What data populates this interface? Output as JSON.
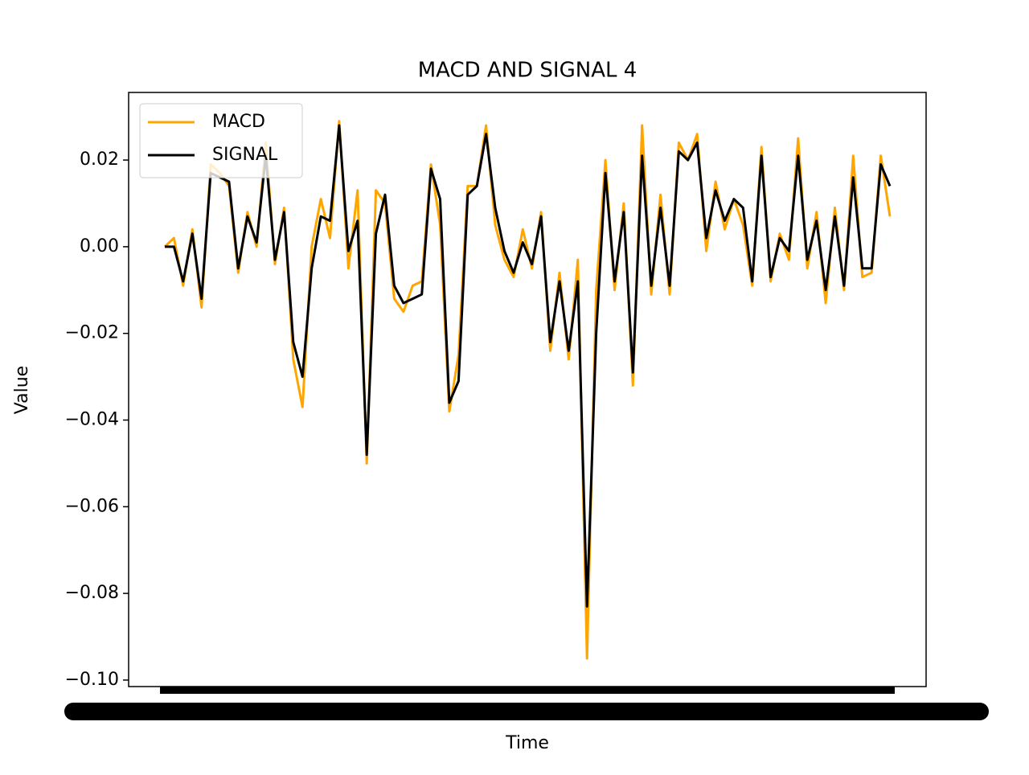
{
  "chart_data": {
    "type": "line",
    "title": "MACD AND SIGNAL 4",
    "x_label": "Time",
    "y_label": "Value",
    "categories": [
      null,
      null,
      null,
      null,
      null,
      null,
      null,
      null,
      null,
      null,
      null,
      null,
      null,
      null,
      null,
      null,
      null,
      null,
      null,
      null,
      null,
      null,
      null,
      null,
      null,
      null,
      null,
      null,
      null,
      null,
      null,
      null,
      null,
      null,
      null,
      null,
      null,
      null,
      null,
      null,
      null,
      null,
      null,
      null,
      null,
      null,
      null,
      null,
      null,
      null,
      null,
      null,
      null,
      null,
      null,
      null,
      null,
      null,
      null,
      null,
      null,
      null,
      null,
      null,
      null,
      null,
      null,
      null,
      null,
      null,
      null,
      null,
      null,
      null,
      null,
      null,
      null,
      null,
      null,
      null
    ],
    "series": [
      {
        "name": "MACD",
        "color": "#ffa500",
        "values": [
          0,
          0.002,
          -0.009,
          0.004,
          -0.014,
          0.019,
          0.017,
          0.014,
          -0.006,
          0.008,
          0.0,
          0.024,
          -0.004,
          0.009,
          -0.026,
          -0.037,
          0.0,
          0.011,
          0.002,
          0.029,
          -0.005,
          0.013,
          -0.05,
          0.013,
          0.01,
          -0.012,
          -0.015,
          -0.009,
          -0.008,
          0.019,
          0.005,
          -0.038,
          -0.025,
          0.014,
          0.014,
          0.028,
          0.005,
          -0.003,
          -0.007,
          0.004,
          -0.005,
          0.008,
          -0.024,
          -0.006,
          -0.026,
          -0.003,
          -0.095,
          -0.01,
          0.02,
          -0.01,
          0.01,
          -0.032,
          0.028,
          -0.011,
          0.012,
          -0.011,
          0.024,
          0.02,
          0.026,
          -0.001,
          0.015,
          0.004,
          0.011,
          0.005,
          -0.009,
          0.023,
          -0.008,
          0.003,
          -0.003,
          0.025,
          -0.005,
          0.008,
          -0.013,
          0.009,
          -0.01,
          0.021,
          -0.007,
          -0.006,
          0.021,
          0.007
        ]
      },
      {
        "name": "SIGNAL",
        "color": "#000000",
        "values": [
          0,
          0,
          -0.008,
          0.003,
          -0.012,
          0.017,
          0.016,
          0.015,
          -0.005,
          0.007,
          0.001,
          0.021,
          -0.003,
          0.008,
          -0.022,
          -0.03,
          -0.005,
          0.007,
          0.006,
          0.028,
          -0.001,
          0.006,
          -0.048,
          0.003,
          0.012,
          -0.009,
          -0.013,
          -0.012,
          -0.011,
          0.018,
          0.011,
          -0.036,
          -0.031,
          0.012,
          0.014,
          0.026,
          0.009,
          -0.001,
          -0.006,
          0.001,
          -0.004,
          0.007,
          -0.022,
          -0.008,
          -0.024,
          -0.008,
          -0.083,
          -0.02,
          0.017,
          -0.008,
          0.008,
          -0.029,
          0.021,
          -0.009,
          0.009,
          -0.009,
          0.022,
          0.02,
          0.024,
          0.002,
          0.013,
          0.006,
          0.011,
          0.009,
          -0.008,
          0.021,
          -0.007,
          0.002,
          -0.001,
          0.021,
          -0.003,
          0.006,
          -0.01,
          0.007,
          -0.009,
          0.016,
          -0.005,
          -0.005,
          0.019,
          0.014
        ]
      }
    ],
    "ylim": [
      -0.1015,
      0.0356
    ],
    "yticks": [
      {
        "value": -0.1,
        "label": "−0.10"
      },
      {
        "value": -0.08,
        "label": "−0.08"
      },
      {
        "value": -0.06,
        "label": "−0.06"
      },
      {
        "value": -0.04,
        "label": "−0.04"
      },
      {
        "value": -0.02,
        "label": "−0.02"
      },
      {
        "value": 0,
        "label": "0.00"
      },
      {
        "value": 0.02,
        "label": "0.02"
      }
    ],
    "legend": "upper left"
  }
}
